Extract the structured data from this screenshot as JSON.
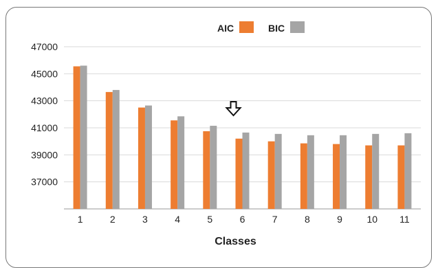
{
  "chart_data": {
    "type": "bar",
    "title": "",
    "xlabel": "Classes",
    "ylabel": "",
    "categories": [
      "1",
      "2",
      "3",
      "4",
      "5",
      "6",
      "7",
      "8",
      "9",
      "10",
      "11"
    ],
    "series": [
      {
        "name": "AIC",
        "color": "#ED7D31",
        "values": [
          45550,
          43650,
          42500,
          41550,
          40750,
          40200,
          40000,
          39850,
          39800,
          39700,
          39700
        ]
      },
      {
        "name": "BIC",
        "color": "#A5A5A5",
        "values": [
          45600,
          43800,
          42650,
          41850,
          41150,
          40650,
          40550,
          40450,
          40450,
          40550,
          40600
        ]
      }
    ],
    "yticks": [
      37000,
      39000,
      41000,
      43000,
      45000,
      47000
    ],
    "ylim": [
      35000,
      47000
    ],
    "grid": true,
    "legend_position": "top",
    "annotation": {
      "type": "down-arrow-icon",
      "category": "6"
    }
  }
}
